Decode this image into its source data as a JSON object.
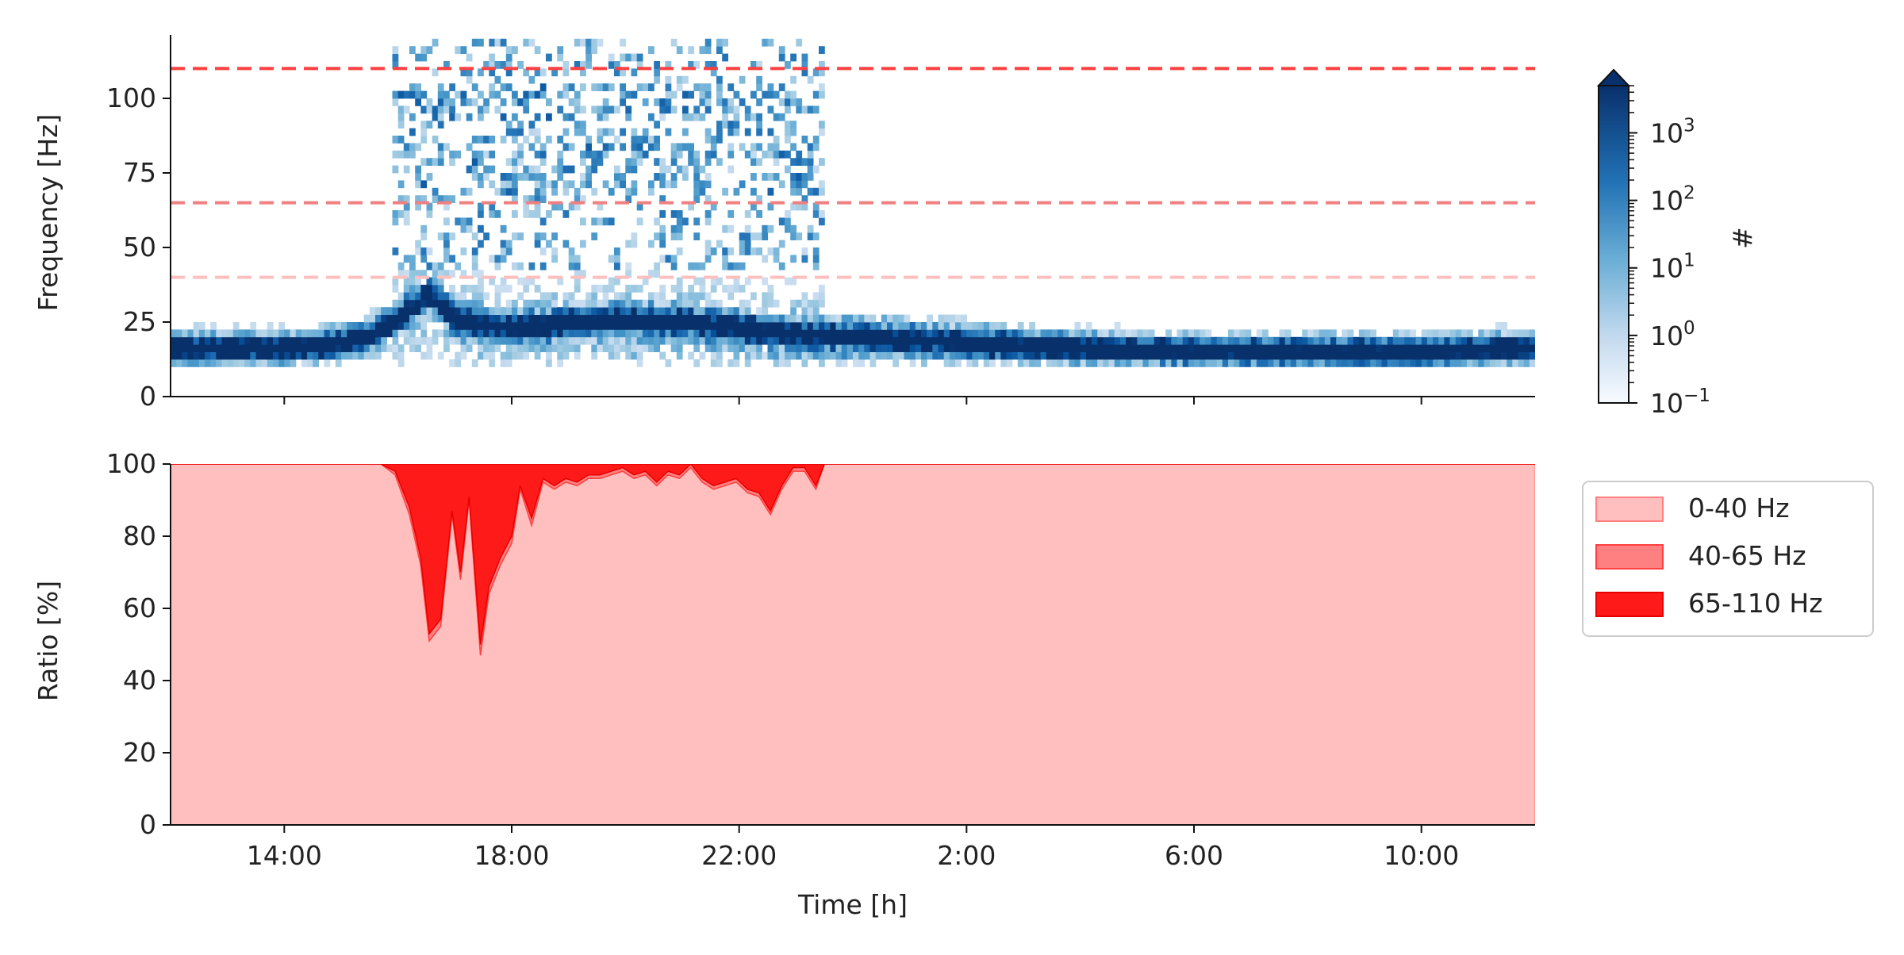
{
  "chart_data": [
    {
      "type": "heatmap",
      "ylabel": "Frequency [Hz]",
      "xlabel": "",
      "ylim": [
        0,
        125
      ],
      "yticks": [
        0,
        25,
        50,
        75,
        100
      ],
      "x_range_hours": [
        12.0,
        36.0
      ],
      "xticks_hours": [
        14,
        18,
        22,
        26,
        30,
        34
      ],
      "xtick_labels_shown": false,
      "threshold_lines_hz": [
        40,
        65,
        110
      ],
      "threshold_line_colors": [
        "#ffbfbf",
        "#f08080",
        "#ff4040"
      ],
      "colormap": "Blues",
      "colorbar": {
        "label": "#",
        "scale": "log",
        "range": [
          0.1,
          5000
        ],
        "ticks": [
          {
            "base": "10",
            "exp": "−1",
            "value": 0.1
          },
          {
            "base": "10",
            "exp": "0",
            "value": 1
          },
          {
            "base": "10",
            "exp": "1",
            "value": 10
          },
          {
            "base": "10",
            "exp": "2",
            "value": 100
          },
          {
            "base": "10",
            "exp": "3",
            "value": 1000
          }
        ],
        "extend": "max"
      },
      "dominant_band_hz": {
        "hours": [
          12,
          14,
          15,
          15.5,
          16.0,
          16.5,
          17,
          18,
          19,
          20,
          21,
          22,
          23,
          24,
          25,
          26,
          28,
          30,
          32,
          34,
          36
        ],
        "center": [
          15,
          15,
          17,
          20,
          26,
          33,
          24,
          22,
          24,
          25,
          24,
          22,
          20,
          19,
          18,
          17,
          15,
          14,
          14,
          14,
          15
        ]
      },
      "activity_period_hours": [
        15.8,
        23.5
      ]
    },
    {
      "type": "area",
      "stacked": true,
      "xlabel": "Time [h]",
      "ylabel": "Ratio [%]",
      "ylim": [
        0,
        100
      ],
      "yticks": [
        0,
        20,
        40,
        60,
        80,
        100
      ],
      "xlim_hours": [
        12.0,
        36.0
      ],
      "xticks_hours": [
        14,
        18,
        22,
        26,
        30,
        34
      ],
      "xtick_labels": [
        "14:00",
        "18:00",
        "22:00",
        "2:00",
        "6:00",
        "10:00"
      ],
      "legend_placement": "right",
      "series": [
        {
          "name": "0-40 Hz",
          "color": "#ffbfbf",
          "border": "#ff8080"
        },
        {
          "name": "40-65 Hz",
          "color": "#ff8080",
          "border": "#ff4040"
        },
        {
          "name": "65-110 Hz",
          "color": "#ff1a1a",
          "border": "#e60000"
        }
      ],
      "x": [
        12.0,
        15.7,
        15.95,
        16.2,
        16.4,
        16.55,
        16.75,
        16.95,
        17.1,
        17.25,
        17.45,
        17.6,
        17.8,
        18.0,
        18.15,
        18.35,
        18.55,
        18.75,
        18.95,
        19.15,
        19.35,
        19.55,
        19.75,
        19.95,
        20.15,
        20.35,
        20.55,
        20.75,
        20.95,
        21.15,
        21.35,
        21.55,
        21.75,
        21.95,
        22.15,
        22.35,
        22.55,
        22.75,
        22.95,
        23.15,
        23.35,
        23.5,
        24.0,
        36.0
      ],
      "cumulative_0_40": [
        100,
        100,
        97,
        86,
        72,
        51,
        55,
        86,
        68,
        90,
        47,
        64,
        72,
        78,
        93,
        83,
        95,
        93,
        95,
        94,
        96,
        96,
        97,
        98,
        96,
        97,
        94,
        97,
        96,
        99,
        95,
        93,
        94,
        95,
        92,
        91,
        86,
        93,
        98,
        98,
        93,
        100,
        100,
        100
      ],
      "cumulative_0_65": [
        100,
        100,
        98,
        88,
        74,
        53,
        57,
        87,
        70,
        91,
        50,
        66,
        74,
        80,
        94,
        85,
        96,
        94,
        96,
        95,
        97,
        97,
        98,
        99,
        97,
        98,
        95,
        98,
        97,
        100,
        96,
        94,
        95,
        96,
        93,
        92,
        87,
        94,
        99,
        99,
        94,
        100,
        100,
        100
      ]
    }
  ]
}
